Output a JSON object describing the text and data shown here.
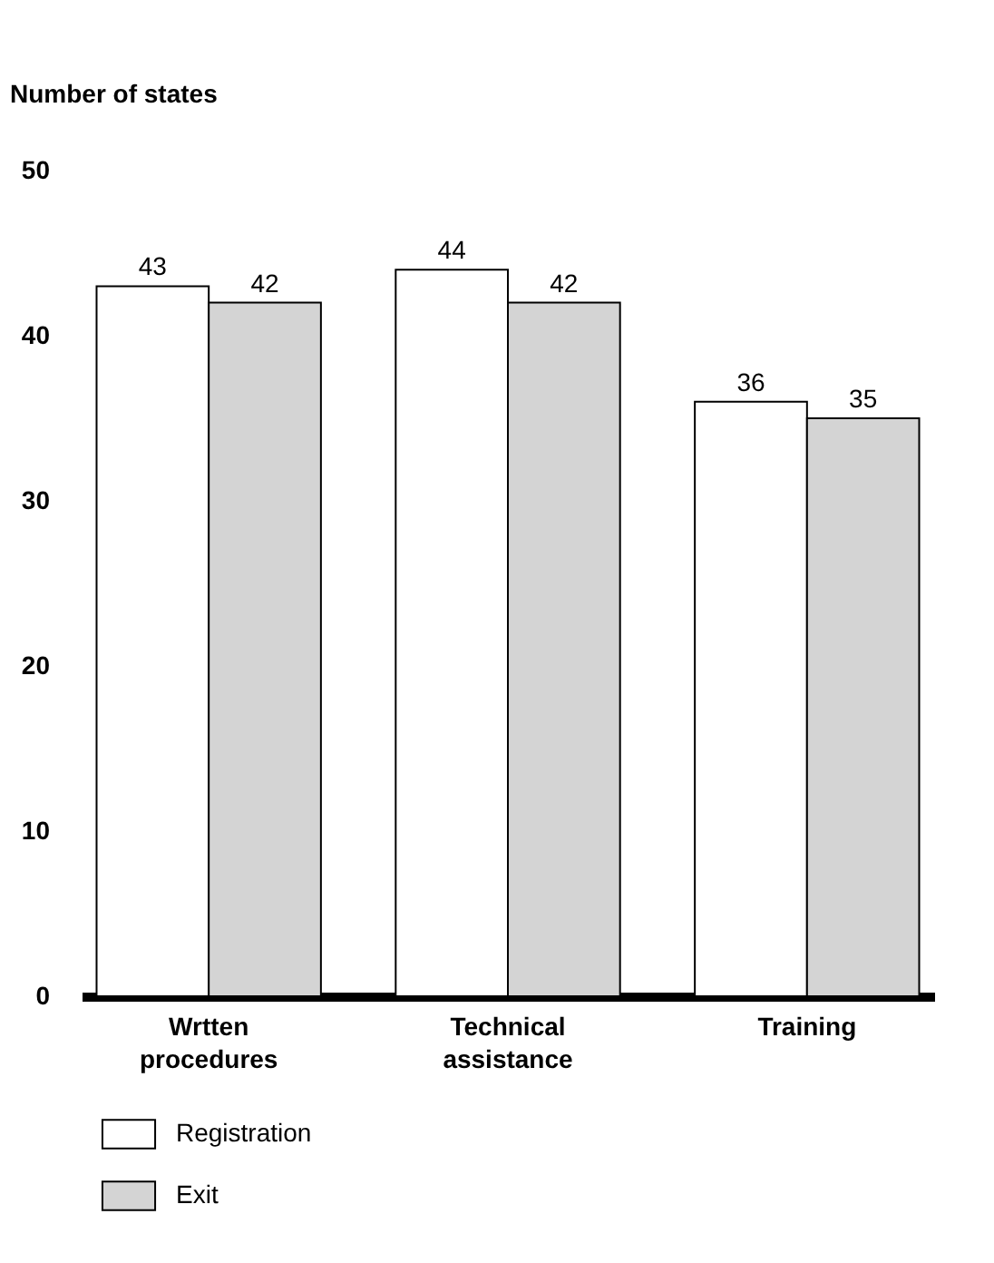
{
  "chart_data": {
    "type": "bar",
    "ylabel": "Number of states",
    "categories": [
      "Wrtten procedures",
      "Technical assistance",
      "Training"
    ],
    "series": [
      {
        "name": "Registration",
        "color": "#ffffff",
        "values": [
          43,
          44,
          36
        ]
      },
      {
        "name": "Exit",
        "color": "#d4d4d4",
        "values": [
          42,
          42,
          35
        ]
      }
    ],
    "ylim": [
      0,
      50
    ],
    "yticks": [
      0,
      10,
      20,
      30,
      40,
      50
    ],
    "data_labels": true,
    "legend": "bottom left"
  }
}
